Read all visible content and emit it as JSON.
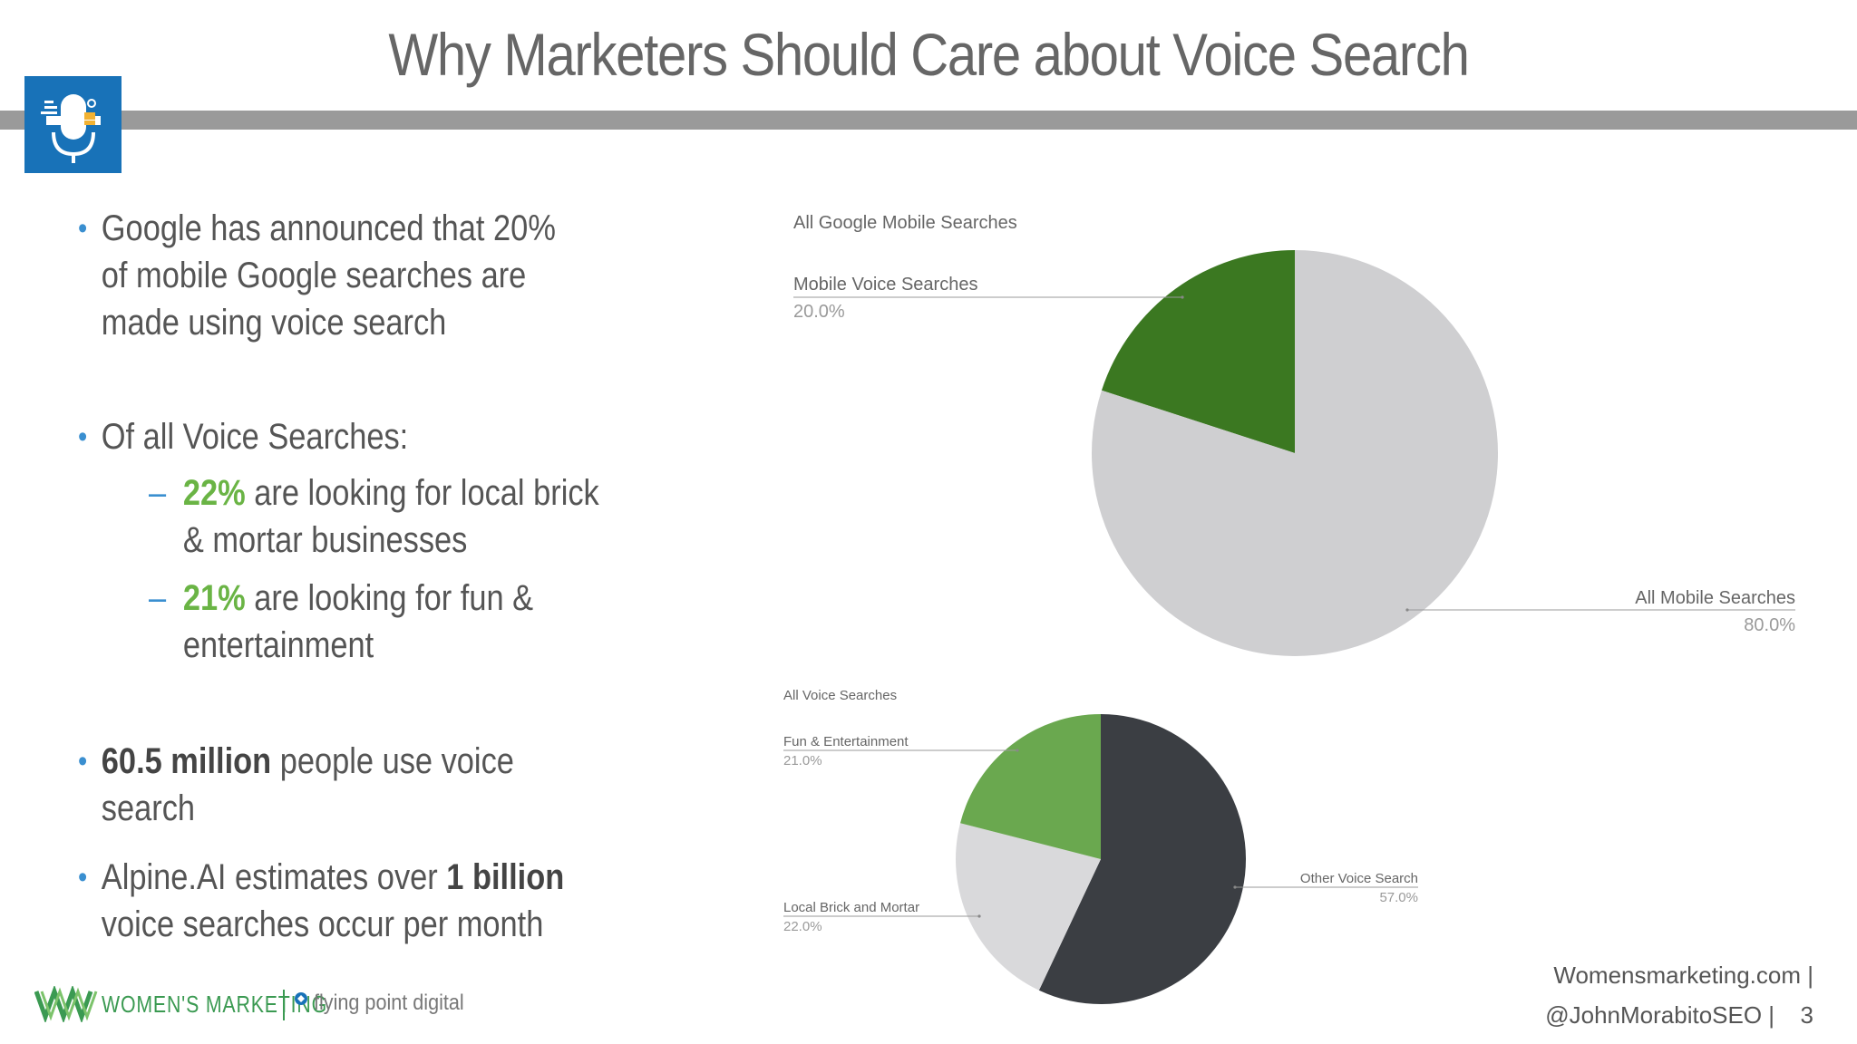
{
  "slide": {
    "title": "Why Marketers Should Care about Voice Search",
    "page_number": "3"
  },
  "bullets": {
    "b1": "Google has announced that 20% of mobile Google searches are made using voice search",
    "b2": "Of all Voice Searches:",
    "sub1_pct": "22%",
    "sub1_text": " are looking for local brick & mortar businesses",
    "sub2_pct": "21%",
    "sub2_text": " are looking for fun & entertainment",
    "b3_bold": "60.5 million",
    "b3_text": " people use voice search",
    "b4_pre": "Alpine.AI estimates over ",
    "b4_bold": "1 billion",
    "b4_post": " voice searches occur per month"
  },
  "footer": {
    "site": "Womensmarketing.com |",
    "handle": "@JohnMorabitoSEO |",
    "brand1": "WOMEN'S MARKETING",
    "brand2": "flying point digital"
  },
  "colors": {
    "accent_blue": "#1872b8",
    "bullet_blue": "#3a8fd0",
    "highlight_green": "#6ab445",
    "pie1_voice": "#3b7821",
    "pie1_all": "#cfcfd1",
    "pie2_fun": "#6aa84f",
    "pie2_local": "#d9d9db",
    "pie2_other": "#3b3e43"
  },
  "chart_data": [
    {
      "type": "pie",
      "title": "All Google Mobile Searches",
      "slices": [
        {
          "label": "Mobile Voice Searches",
          "value": 20.0,
          "display": "20.0%",
          "color": "#3b7821"
        },
        {
          "label": "All Mobile Searches",
          "value": 80.0,
          "display": "80.0%",
          "color": "#cfcfd1"
        }
      ]
    },
    {
      "type": "pie",
      "title": "All Voice Searches",
      "slices": [
        {
          "label": "Other Voice Search",
          "value": 57.0,
          "display": "57.0%",
          "color": "#3b3e43"
        },
        {
          "label": "Local Brick and Mortar",
          "value": 22.0,
          "display": "22.0%",
          "color": "#d9d9db"
        },
        {
          "label": "Fun & Entertainment",
          "value": 21.0,
          "display": "21.0%",
          "color": "#6aa84f"
        }
      ]
    }
  ]
}
